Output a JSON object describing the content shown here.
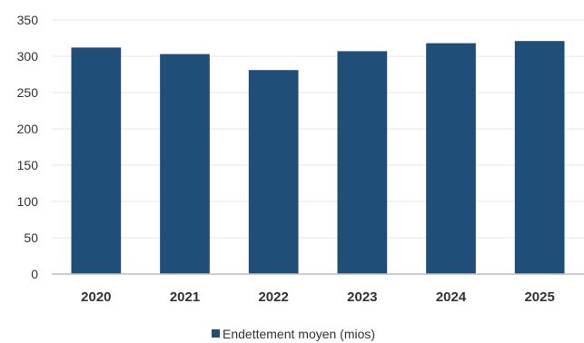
{
  "chart_data": {
    "type": "bar",
    "title": "",
    "xlabel": "",
    "ylabel": "",
    "categories": [
      "2020",
      "2021",
      "2022",
      "2023",
      "2024",
      "2025"
    ],
    "series": [
      {
        "name": "Endettement moyen (mios)",
        "values": [
          312,
          303,
          281,
          307,
          318,
          321
        ],
        "color": "#1F4E79"
      }
    ],
    "ylim": [
      0,
      350
    ],
    "yticks": [
      "0",
      "50",
      "100",
      "150",
      "200",
      "250",
      "300",
      "350"
    ],
    "grid": true,
    "legend_position": "bottom"
  }
}
